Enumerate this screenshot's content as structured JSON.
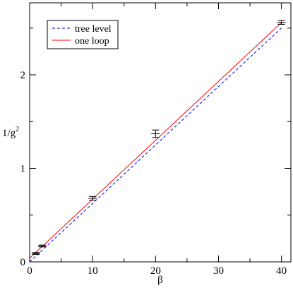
{
  "chart_data": {
    "type": "line",
    "xlabel": "β",
    "ylabel": {
      "main": "1/g",
      "sup": "2"
    },
    "xlim": [
      0,
      41.5
    ],
    "ylim": [
      0,
      2.77
    ],
    "xticks": [
      0,
      10,
      20,
      30,
      40
    ],
    "xtick_labels": [
      "0",
      "10",
      "20",
      "30",
      "40"
    ],
    "yticks": [
      0,
      1,
      2
    ],
    "ytick_labels": [
      "0",
      "1",
      "2"
    ],
    "grid": false,
    "legend_position": "top-left",
    "series": [
      {
        "name": "tree level",
        "style": "dashed",
        "color": "#0000ff",
        "x": [
          0,
          40
        ],
        "y": [
          0,
          2.5
        ]
      },
      {
        "name": "one loop",
        "style": "solid",
        "color": "#ff0000",
        "x": [
          0,
          40
        ],
        "y": [
          0.04,
          2.56
        ]
      }
    ],
    "points": [
      {
        "x": 1,
        "y": 0.09,
        "yerr": 0.01
      },
      {
        "x": 2,
        "y": 0.17,
        "yerr": 0.01
      },
      {
        "x": 10,
        "y": 0.68,
        "yerr": 0.02
      },
      {
        "x": 20,
        "y": 1.37,
        "yerr": 0.04
      },
      {
        "x": 40,
        "y": 2.56,
        "yerr": 0.02
      }
    ]
  }
}
